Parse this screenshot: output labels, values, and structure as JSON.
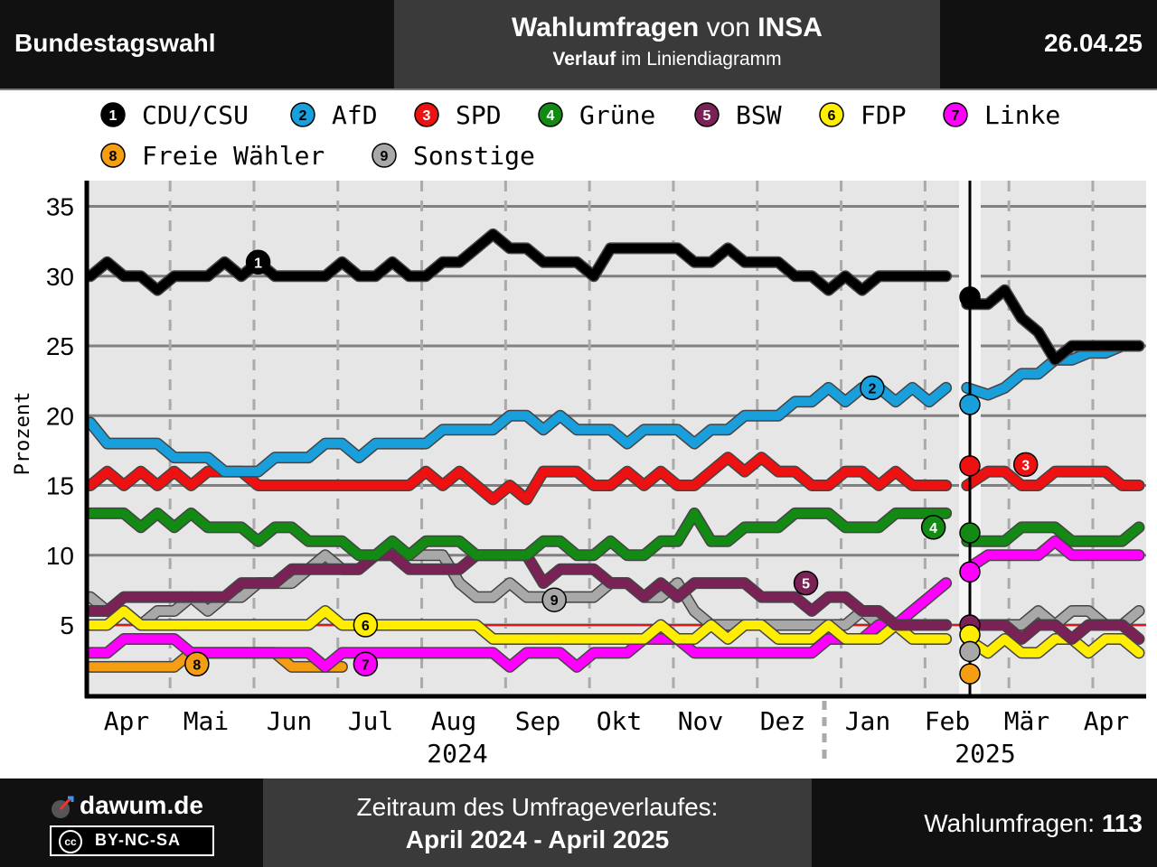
{
  "header": {
    "left_title": "Bundestagswahl",
    "title_bold_1": "Wahlumfragen",
    "title_mid": " von ",
    "title_bold_2": "INSA",
    "subtitle_bold": "Verlauf",
    "subtitle_rest": " im Liniendiagramm",
    "date": "26.04.25"
  },
  "footer": {
    "brand": "dawum.de",
    "license": "BY-NC-SA",
    "license_icon": "cc",
    "period_label": "Zeitraum des Umfrageverlaufes:",
    "period_value": "April 2024 - April 2025",
    "count_label": "Wahlumfragen: ",
    "count_value": "113"
  },
  "chart_data": {
    "type": "line",
    "ylabel": "Prozent",
    "ylim": [
      0,
      37
    ],
    "yticks": [
      5,
      10,
      15,
      20,
      25,
      30,
      35
    ],
    "grid": true,
    "threshold": 5,
    "months": [
      "Apr",
      "Mai",
      "Jun",
      "Jul",
      "Aug",
      "Sep",
      "Okt",
      "Nov",
      "Dez",
      "Jan",
      "Feb",
      "Mär",
      "Apr"
    ],
    "years": [
      "2024",
      "2025"
    ],
    "election_marker": "Feb 2025",
    "series": [
      {
        "id": 1,
        "name": "CDU/CSU",
        "color": "#000000",
        "x": [
          0,
          0.2,
          0.4,
          0.6,
          0.8,
          1,
          1.2,
          1.4,
          1.6,
          1.8,
          2,
          2.2,
          2.4,
          2.6,
          2.8,
          3,
          3.2,
          3.4,
          3.6,
          3.8,
          4,
          4.2,
          4.4,
          4.6,
          4.8,
          5,
          5.2,
          5.4,
          5.6,
          5.8,
          6,
          6.2,
          6.4,
          6.6,
          6.8,
          7,
          7.2,
          7.4,
          7.6,
          7.8,
          8,
          8.2,
          8.4,
          8.6,
          8.8,
          9,
          9.2,
          9.4,
          9.6,
          9.8,
          10,
          10.2,
          10.45,
          10.7,
          10.9,
          11.1,
          11.3,
          11.5,
          11.7,
          11.9,
          12.1,
          12.3,
          12.5
        ],
        "values": [
          30,
          31,
          30,
          30,
          29,
          30,
          30,
          30,
          31,
          30,
          31,
          30,
          30,
          30,
          30,
          31,
          30,
          30,
          31,
          30,
          30,
          31,
          31,
          32,
          33,
          32,
          32,
          31,
          31,
          31,
          30,
          32,
          32,
          32,
          32,
          32,
          31,
          31,
          32,
          31,
          31,
          31,
          30,
          30,
          29,
          30,
          29,
          30,
          30,
          30,
          30,
          30,
          28,
          28,
          29,
          27,
          26,
          24,
          25,
          25,
          25,
          25,
          25
        ]
      },
      {
        "id": 2,
        "name": "AfD",
        "color": "#1a9fdd",
        "x": [
          0,
          0.2,
          0.4,
          0.6,
          0.8,
          1,
          1.2,
          1.4,
          1.6,
          1.8,
          2,
          2.2,
          2.4,
          2.6,
          2.8,
          3,
          3.2,
          3.4,
          3.6,
          3.8,
          4,
          4.2,
          4.4,
          4.6,
          4.8,
          5,
          5.2,
          5.4,
          5.6,
          5.8,
          6,
          6.2,
          6.4,
          6.6,
          6.8,
          7,
          7.2,
          7.4,
          7.6,
          7.8,
          8,
          8.2,
          8.4,
          8.6,
          8.8,
          9,
          9.2,
          9.4,
          9.6,
          9.8,
          10,
          10.2,
          10.45,
          10.7,
          10.9,
          11.1,
          11.3,
          11.5,
          11.7,
          11.9,
          12.1,
          12.3,
          12.5
        ],
        "values": [
          19.5,
          18,
          18,
          18,
          18,
          17,
          17,
          17,
          16,
          16,
          16,
          17,
          17,
          17,
          18,
          18,
          17,
          18,
          18,
          18,
          18,
          19,
          19,
          19,
          19,
          20,
          20,
          19,
          20,
          19,
          19,
          19,
          18,
          19,
          19,
          19,
          18,
          19,
          19,
          20,
          20,
          20,
          21,
          21,
          22,
          21,
          22,
          22,
          21,
          22,
          21,
          22,
          22,
          21.5,
          22,
          23,
          23,
          24,
          24,
          24.5,
          24.5,
          25,
          25
        ]
      },
      {
        "id": 3,
        "name": "SPD",
        "color": "#ee1111",
        "x": [
          0,
          0.2,
          0.4,
          0.6,
          0.8,
          1,
          1.2,
          1.4,
          1.6,
          1.8,
          2,
          2.2,
          2.4,
          2.6,
          2.8,
          3,
          3.2,
          3.4,
          3.6,
          3.8,
          4,
          4.2,
          4.4,
          4.6,
          4.8,
          5,
          5.2,
          5.4,
          5.6,
          5.8,
          6,
          6.2,
          6.4,
          6.6,
          6.8,
          7,
          7.2,
          7.4,
          7.6,
          7.8,
          8,
          8.2,
          8.4,
          8.6,
          8.8,
          9,
          9.2,
          9.4,
          9.6,
          9.8,
          10,
          10.2,
          10.45,
          10.7,
          10.9,
          11.1,
          11.3,
          11.5,
          11.7,
          11.9,
          12.1,
          12.3,
          12.5
        ],
        "values": [
          15,
          16,
          15,
          16,
          15,
          16,
          15,
          16,
          16,
          16,
          15,
          15,
          15,
          15,
          15,
          15,
          15,
          15,
          15,
          15,
          16,
          15,
          16,
          15,
          14,
          15,
          14,
          16,
          16,
          16,
          15,
          15,
          16,
          15,
          16,
          15,
          15,
          16,
          17,
          16,
          17,
          16,
          16,
          15,
          15,
          16,
          16,
          15,
          16,
          15,
          15,
          15,
          15,
          16,
          16,
          15,
          15,
          16,
          16,
          16,
          16,
          15,
          15
        ]
      },
      {
        "id": 4,
        "name": "Grüne",
        "color": "#138a13",
        "x": [
          0,
          0.2,
          0.4,
          0.6,
          0.8,
          1,
          1.2,
          1.4,
          1.6,
          1.8,
          2,
          2.2,
          2.4,
          2.6,
          2.8,
          3,
          3.2,
          3.4,
          3.6,
          3.8,
          4,
          4.2,
          4.4,
          4.6,
          4.8,
          5,
          5.2,
          5.4,
          5.6,
          5.8,
          6,
          6.2,
          6.4,
          6.6,
          6.8,
          7,
          7.2,
          7.4,
          7.6,
          7.8,
          8,
          8.2,
          8.4,
          8.6,
          8.8,
          9,
          9.2,
          9.4,
          9.6,
          9.8,
          10,
          10.2,
          10.45,
          10.7,
          10.9,
          11.1,
          11.3,
          11.5,
          11.7,
          11.9,
          12.1,
          12.3,
          12.5
        ],
        "values": [
          13,
          13,
          13,
          12,
          13,
          12,
          13,
          12,
          12,
          12,
          11,
          12,
          12,
          11,
          11,
          11,
          10,
          10,
          11,
          10,
          11,
          11,
          11,
          10,
          10,
          10,
          10,
          11,
          11,
          10,
          10,
          11,
          10,
          10,
          11,
          11,
          13,
          11,
          11,
          12,
          12,
          12,
          13,
          13,
          13,
          12,
          12,
          12,
          13,
          13,
          13,
          13,
          11,
          11,
          11,
          12,
          12,
          12,
          11,
          11,
          11,
          11,
          12
        ]
      },
      {
        "id": 5,
        "name": "BSW",
        "color": "#7a2155",
        "x": [
          0,
          0.2,
          0.4,
          0.6,
          0.8,
          1,
          1.2,
          1.4,
          1.6,
          1.8,
          2,
          2.2,
          2.4,
          2.6,
          2.8,
          3,
          3.2,
          3.4,
          3.6,
          3.8,
          4,
          4.2,
          4.4,
          4.6,
          4.8,
          5,
          5.2,
          5.4,
          5.6,
          5.8,
          6,
          6.2,
          6.4,
          6.6,
          6.8,
          7,
          7.2,
          7.4,
          7.6,
          7.8,
          8,
          8.2,
          8.4,
          8.6,
          8.8,
          9,
          9.2,
          9.4,
          9.6,
          9.8,
          10,
          10.2,
          10.45,
          10.7,
          10.9,
          11.1,
          11.3,
          11.5,
          11.7,
          11.9,
          12.1,
          12.3,
          12.5
        ],
        "values": [
          6,
          6,
          7,
          7,
          7,
          7,
          7,
          7,
          7,
          8,
          8,
          8,
          9,
          9,
          9,
          9,
          9,
          10,
          10,
          9,
          9,
          9,
          9,
          10,
          10,
          10,
          10,
          8,
          9,
          9,
          9,
          8,
          8,
          7,
          8,
          7,
          8,
          8,
          8,
          8,
          7,
          7,
          7,
          6,
          7,
          7,
          6,
          6,
          5,
          5,
          5,
          5,
          5,
          5,
          5,
          4,
          5,
          5,
          4,
          5,
          5,
          5,
          4
        ]
      },
      {
        "id": 6,
        "name": "FDP",
        "color": "#ffee00",
        "x": [
          0,
          0.2,
          0.4,
          0.6,
          0.8,
          1,
          1.2,
          1.4,
          1.6,
          1.8,
          2,
          2.2,
          2.4,
          2.6,
          2.8,
          3,
          3.2,
          3.4,
          3.6,
          3.8,
          4,
          4.2,
          4.4,
          4.6,
          4.8,
          5,
          5.2,
          5.4,
          5.6,
          5.8,
          6,
          6.2,
          6.4,
          6.6,
          6.8,
          7,
          7.2,
          7.4,
          7.6,
          7.8,
          8,
          8.2,
          8.4,
          8.6,
          8.8,
          9,
          9.2,
          9.4,
          9.6,
          9.8,
          10,
          10.2,
          10.45,
          10.7,
          10.9,
          11.1,
          11.3,
          11.5,
          11.7,
          11.9,
          12.1,
          12.3,
          12.5
        ],
        "values": [
          5,
          5,
          6,
          5,
          5,
          5,
          5,
          5,
          5,
          5,
          5,
          5,
          5,
          5,
          6,
          5,
          5,
          5,
          5,
          5,
          5,
          5,
          5,
          5,
          4,
          4,
          4,
          4,
          4,
          4,
          4,
          4,
          4,
          4,
          5,
          4,
          4,
          5,
          4,
          5,
          5,
          4,
          4,
          4,
          5,
          4,
          4,
          4,
          5,
          4,
          4,
          4,
          4,
          3,
          4,
          3,
          3,
          4,
          4,
          3,
          4,
          4,
          3
        ]
      },
      {
        "id": 7,
        "name": "Linke",
        "color": "#ff00ff",
        "x": [
          0,
          0.2,
          0.4,
          0.6,
          0.8,
          1,
          1.2,
          1.4,
          1.6,
          1.8,
          2,
          2.2,
          2.4,
          2.6,
          2.8,
          3,
          3.2,
          3.4,
          3.6,
          3.8,
          4,
          4.2,
          4.4,
          4.6,
          4.8,
          5,
          5.2,
          5.4,
          5.6,
          5.8,
          6,
          6.2,
          6.4,
          6.6,
          6.8,
          7,
          7.2,
          7.4,
          7.6,
          7.8,
          8,
          8.2,
          8.4,
          8.6,
          8.8,
          9,
          9.2,
          9.4,
          9.6,
          9.8,
          10,
          10.2,
          10.45,
          10.7,
          10.9,
          11.1,
          11.3,
          11.5,
          11.7,
          11.9,
          12.1,
          12.3,
          12.5
        ],
        "values": [
          3,
          3,
          4,
          4,
          4,
          4,
          3,
          3,
          3,
          3,
          3,
          3,
          3,
          3,
          2,
          3,
          3,
          3,
          3,
          3,
          3,
          3,
          3,
          3,
          3,
          2,
          3,
          3,
          3,
          2,
          3,
          3,
          3,
          4,
          4,
          4,
          3,
          3,
          3,
          3,
          3,
          3,
          3,
          3,
          4,
          4,
          4,
          5,
          5,
          6,
          7,
          8,
          9,
          10,
          10,
          10,
          10,
          11,
          10,
          10,
          10,
          10,
          10
        ]
      },
      {
        "id": 8,
        "name": "Freie Wähler",
        "color": "#f59e14",
        "x": [
          0,
          0.2,
          0.4,
          0.6,
          0.8,
          1,
          1.2,
          1.4,
          1.6,
          1.8,
          2,
          2.2,
          2.4,
          2.6,
          2.8,
          3
        ],
        "values": [
          2,
          2,
          2,
          2,
          2,
          2,
          3,
          3,
          3,
          3,
          3,
          3,
          2,
          2,
          2,
          2
        ]
      },
      {
        "id": 9,
        "name": "Sonstige",
        "color": "#a8a8a8",
        "x": [
          0,
          0.2,
          0.4,
          0.6,
          0.8,
          1,
          1.2,
          1.4,
          1.6,
          1.8,
          2,
          2.2,
          2.4,
          2.6,
          2.8,
          3,
          3.2,
          3.4,
          3.6,
          3.8,
          4,
          4.2,
          4.4,
          4.6,
          4.8,
          5,
          5.2,
          5.4,
          5.6,
          5.8,
          6,
          6.2,
          6.4,
          6.6,
          6.8,
          7,
          7.2,
          7.4,
          7.6,
          7.8,
          8,
          8.2,
          8.4,
          8.6,
          8.8,
          9,
          9.2,
          9.4,
          9.6,
          9.8,
          10,
          10.2,
          10.45,
          10.7,
          10.9,
          11.1,
          11.3,
          11.5,
          11.7,
          11.9,
          12.1,
          12.3,
          12.5
        ],
        "values": [
          7,
          6,
          6,
          5,
          6,
          6,
          7,
          6,
          7,
          7,
          8,
          8,
          8,
          9,
          10,
          9,
          9,
          10,
          10,
          10,
          10,
          10,
          8,
          7,
          7,
          8,
          7,
          7,
          7,
          7,
          7,
          8,
          8,
          7,
          7,
          8,
          6,
          5,
          5,
          5,
          5,
          5,
          5,
          5,
          5,
          5,
          6,
          5,
          5,
          5,
          5,
          5,
          5,
          5,
          5,
          5,
          6,
          5,
          6,
          6,
          5,
          5,
          6
        ]
      }
    ],
    "election_result": [
      {
        "id": 1,
        "value": 28.5
      },
      {
        "id": 2,
        "value": 20.8
      },
      {
        "id": 3,
        "value": 16.4
      },
      {
        "id": 4,
        "value": 11.6
      },
      {
        "id": 7,
        "value": 8.8
      },
      {
        "id": 5,
        "value": 5.0
      },
      {
        "id": 6,
        "value": 4.3
      },
      {
        "id": 9,
        "value": 3.1
      },
      {
        "id": 8,
        "value": 1.5
      }
    ],
    "line_labels": [
      {
        "id": 1,
        "x": 2.0,
        "value": 31
      },
      {
        "id": 2,
        "x": 9.32,
        "value": 22
      },
      {
        "id": 3,
        "x": 11.15,
        "value": 16.5
      },
      {
        "id": 4,
        "x": 10.05,
        "value": 12
      },
      {
        "id": 5,
        "x": 8.53,
        "value": 8
      },
      {
        "id": 6,
        "x": 3.28,
        "value": 5
      },
      {
        "id": 7,
        "x": 3.28,
        "value": 2.2
      },
      {
        "id": 8,
        "x": 1.27,
        "value": 2.2
      },
      {
        "id": 9,
        "x": 5.53,
        "value": 6.8
      }
    ]
  }
}
